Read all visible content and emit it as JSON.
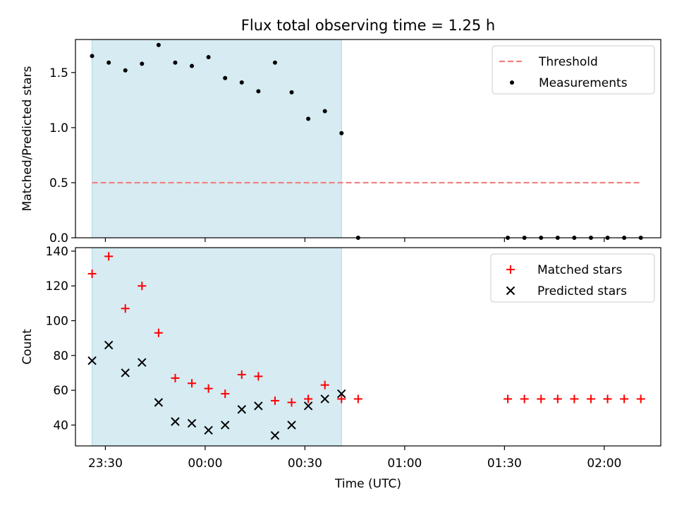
{
  "chart_data": [
    {
      "type": "scatter",
      "title": "Flux total observing time = 1.25 h",
      "xlabel": "",
      "ylabel": "Matched/Predicted stars",
      "ylim": [
        0,
        1.8
      ],
      "yticks": [
        0.0,
        0.5,
        1.0,
        1.5
      ],
      "ytick_labels": [
        "0.0",
        "0.5",
        "1.0",
        "1.5"
      ],
      "xlim": [
        "23:21",
        "02:17"
      ],
      "xticks": [
        "23:30",
        "00:00",
        "00:30",
        "01:00",
        "01:30",
        "02:00"
      ],
      "show_xtick_labels": false,
      "shaded_span": [
        "23:26",
        "00:41"
      ],
      "shaded_color": "#add8e6",
      "threshold": {
        "label": "Threshold",
        "value": 0.5,
        "x_range": [
          "23:26",
          "02:11"
        ],
        "color": "#f08080"
      },
      "series": [
        {
          "name": "Measurements",
          "color": "#000000",
          "marker": "dot",
          "x": [
            "23:26",
            "23:31",
            "23:36",
            "23:41",
            "23:46",
            "23:51",
            "23:56",
            "00:01",
            "00:06",
            "00:11",
            "00:16",
            "00:21",
            "00:26",
            "00:31",
            "00:36",
            "00:41",
            "00:46",
            "01:31",
            "01:36",
            "01:41",
            "01:46",
            "01:51",
            "01:56",
            "02:01",
            "02:06",
            "02:11"
          ],
          "y": [
            1.65,
            1.59,
            1.52,
            1.58,
            1.75,
            1.59,
            1.56,
            1.64,
            1.45,
            1.41,
            1.33,
            1.59,
            1.32,
            1.08,
            1.15,
            0.95,
            0.0,
            0.0,
            0.0,
            0.0,
            0.0,
            0.0,
            0.0,
            0.0,
            0.0,
            0.0
          ]
        }
      ],
      "legend": {
        "position": "top-right",
        "entries": [
          "Threshold",
          "Measurements"
        ]
      }
    },
    {
      "type": "scatter",
      "title": "",
      "xlabel": "Time (UTC)",
      "ylabel": "Count",
      "ylim": [
        28,
        142
      ],
      "yticks": [
        40,
        60,
        80,
        100,
        120,
        140
      ],
      "ytick_labels": [
        "40",
        "60",
        "80",
        "100",
        "120",
        "140"
      ],
      "xlim": [
        "23:21",
        "02:17"
      ],
      "xticks": [
        "23:30",
        "00:00",
        "00:30",
        "01:00",
        "01:30",
        "02:00"
      ],
      "xtick_labels": [
        "23:30",
        "00:00",
        "00:30",
        "01:00",
        "01:30",
        "02:00"
      ],
      "shaded_span": [
        "23:26",
        "00:41"
      ],
      "shaded_color": "#add8e6",
      "series": [
        {
          "name": "Matched stars",
          "color": "#ff0000",
          "marker": "plus",
          "x": [
            "23:26",
            "23:31",
            "23:36",
            "23:41",
            "23:46",
            "23:51",
            "23:56",
            "00:01",
            "00:06",
            "00:11",
            "00:16",
            "00:21",
            "00:26",
            "00:31",
            "00:36",
            "00:41",
            "00:46",
            "01:31",
            "01:36",
            "01:41",
            "01:46",
            "01:51",
            "01:56",
            "02:01",
            "02:06",
            "02:11"
          ],
          "y": [
            127,
            137,
            107,
            120,
            93,
            67,
            64,
            61,
            58,
            69,
            68,
            54,
            53,
            55,
            63,
            55,
            55,
            55,
            55,
            55,
            55,
            55,
            55,
            55,
            55,
            55
          ]
        },
        {
          "name": "Predicted stars",
          "color": "#000000",
          "marker": "x",
          "x": [
            "23:26",
            "23:31",
            "23:36",
            "23:41",
            "23:46",
            "23:51",
            "23:56",
            "00:01",
            "00:06",
            "00:11",
            "00:16",
            "00:21",
            "00:26",
            "00:31",
            "00:36",
            "00:41"
          ],
          "y": [
            77,
            86,
            70,
            76,
            53,
            42,
            41,
            37,
            40,
            49,
            51,
            34,
            40,
            51,
            55,
            58
          ]
        }
      ],
      "legend": {
        "position": "top-right",
        "entries": [
          "Matched stars",
          "Predicted stars"
        ]
      }
    }
  ]
}
